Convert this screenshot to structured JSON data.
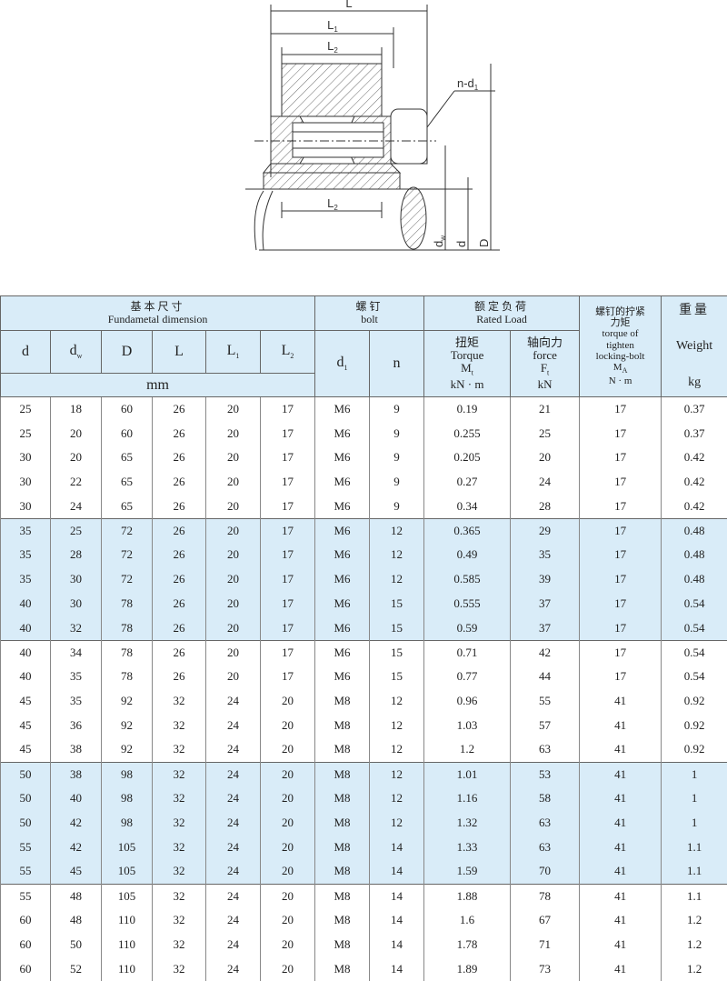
{
  "drawing": {
    "labels": {
      "L": {
        "main": "L"
      },
      "L1": {
        "main": "L",
        "sub": "1"
      },
      "L2_top": {
        "main": "L",
        "sub": "2"
      },
      "nd1": {
        "main": "n-d",
        "sub": "1"
      },
      "L2_bottom": {
        "main": "L",
        "sub": "2"
      },
      "dw": {
        "main": "d",
        "sub": "w"
      },
      "d": {
        "main": "d"
      },
      "D": {
        "main": "D"
      }
    }
  },
  "table": {
    "header": {
      "group_dimension": {
        "cn": "基本尺寸",
        "en": "Fundametal dimension"
      },
      "group_bolt": {
        "cn": "螺钉",
        "en": "bolt"
      },
      "group_load": {
        "cn": "额定负荷",
        "en": "Rated Load"
      },
      "bolt_torque": {
        "cn": [
          "螺钉的拧紧",
          "力矩"
        ],
        "en": [
          "torque of",
          "tighten",
          "locking-bolt"
        ],
        "symbol": {
          "main": "M",
          "sub": "A"
        },
        "unit": "N · m"
      },
      "weight": {
        "cn": "重量",
        "en": "Weight",
        "unit": "kg"
      },
      "columns": [
        {
          "main": "d"
        },
        {
          "main": "d",
          "sub": "w"
        },
        {
          "main": "D"
        },
        {
          "main": "L"
        },
        {
          "main": "L",
          "sub": "1"
        },
        {
          "main": "L",
          "sub": "2"
        }
      ],
      "unit_mm": "mm",
      "bolt_columns": [
        {
          "main": "d",
          "sub": "1"
        },
        {
          "main": "n"
        }
      ],
      "torque": {
        "cn": "扭矩",
        "en": "Torque",
        "symbol": {
          "main": "M",
          "sub": "t"
        },
        "unit": "kN · m"
      },
      "force": {
        "cn": "轴向力",
        "en": "force",
        "symbol": {
          "main": "F",
          "sub": "t"
        },
        "unit": "kN"
      }
    },
    "rows": [
      [
        "25",
        "18",
        "60",
        "26",
        "20",
        "17",
        "M6",
        "9",
        "0.19",
        "21",
        "17",
        "0.37"
      ],
      [
        "25",
        "20",
        "60",
        "26",
        "20",
        "17",
        "M6",
        "9",
        "0.255",
        "25",
        "17",
        "0.37"
      ],
      [
        "30",
        "20",
        "65",
        "26",
        "20",
        "17",
        "M6",
        "9",
        "0.205",
        "20",
        "17",
        "0.42"
      ],
      [
        "30",
        "22",
        "65",
        "26",
        "20",
        "17",
        "M6",
        "9",
        "0.27",
        "24",
        "17",
        "0.42"
      ],
      [
        "30",
        "24",
        "65",
        "26",
        "20",
        "17",
        "M6",
        "9",
        "0.34",
        "28",
        "17",
        "0.42"
      ],
      [
        "35",
        "25",
        "72",
        "26",
        "20",
        "17",
        "M6",
        "12",
        "0.365",
        "29",
        "17",
        "0.48"
      ],
      [
        "35",
        "28",
        "72",
        "26",
        "20",
        "17",
        "M6",
        "12",
        "0.49",
        "35",
        "17",
        "0.48"
      ],
      [
        "35",
        "30",
        "72",
        "26",
        "20",
        "17",
        "M6",
        "12",
        "0.585",
        "39",
        "17",
        "0.48"
      ],
      [
        "40",
        "30",
        "78",
        "26",
        "20",
        "17",
        "M6",
        "15",
        "0.555",
        "37",
        "17",
        "0.54"
      ],
      [
        "40",
        "32",
        "78",
        "26",
        "20",
        "17",
        "M6",
        "15",
        "0.59",
        "37",
        "17",
        "0.54"
      ],
      [
        "40",
        "34",
        "78",
        "26",
        "20",
        "17",
        "M6",
        "15",
        "0.71",
        "42",
        "17",
        "0.54"
      ],
      [
        "40",
        "35",
        "78",
        "26",
        "20",
        "17",
        "M6",
        "15",
        "0.77",
        "44",
        "17",
        "0.54"
      ],
      [
        "45",
        "35",
        "92",
        "32",
        "24",
        "20",
        "M8",
        "12",
        "0.96",
        "55",
        "41",
        "0.92"
      ],
      [
        "45",
        "36",
        "92",
        "32",
        "24",
        "20",
        "M8",
        "12",
        "1.03",
        "57",
        "41",
        "0.92"
      ],
      [
        "45",
        "38",
        "92",
        "32",
        "24",
        "20",
        "M8",
        "12",
        "1.2",
        "63",
        "41",
        "0.92"
      ],
      [
        "50",
        "38",
        "98",
        "32",
        "24",
        "20",
        "M8",
        "12",
        "1.01",
        "53",
        "41",
        "1"
      ],
      [
        "50",
        "40",
        "98",
        "32",
        "24",
        "20",
        "M8",
        "12",
        "1.16",
        "58",
        "41",
        "1"
      ],
      [
        "50",
        "42",
        "98",
        "32",
        "24",
        "20",
        "M8",
        "12",
        "1.32",
        "63",
        "41",
        "1"
      ],
      [
        "55",
        "42",
        "105",
        "32",
        "24",
        "20",
        "M8",
        "14",
        "1.33",
        "63",
        "41",
        "1.1"
      ],
      [
        "55",
        "45",
        "105",
        "32",
        "24",
        "20",
        "M8",
        "14",
        "1.59",
        "70",
        "41",
        "1.1"
      ],
      [
        "55",
        "48",
        "105",
        "32",
        "24",
        "20",
        "M8",
        "14",
        "1.88",
        "78",
        "41",
        "1.1"
      ],
      [
        "60",
        "48",
        "110",
        "32",
        "24",
        "20",
        "M8",
        "14",
        "1.6",
        "67",
        "41",
        "1.2"
      ],
      [
        "60",
        "50",
        "110",
        "32",
        "24",
        "20",
        "M8",
        "14",
        "1.78",
        "71",
        "41",
        "1.2"
      ],
      [
        "60",
        "52",
        "110",
        "32",
        "24",
        "20",
        "M8",
        "14",
        "1.89",
        "73",
        "41",
        "1.2"
      ]
    ]
  }
}
